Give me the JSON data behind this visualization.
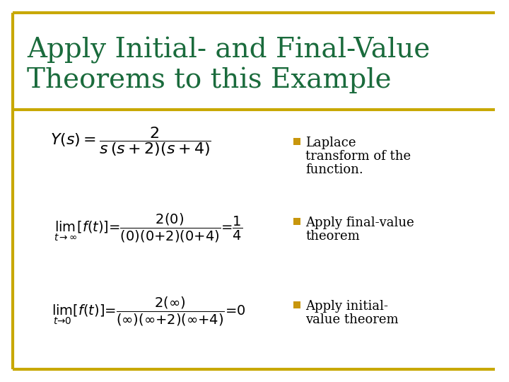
{
  "title_line1": "Apply Initial- and Final-Value",
  "title_line2": "Theorems to this Example",
  "title_color": "#1a6b3c",
  "background_color": "#ffffff",
  "border_color": "#c8a800",
  "bullet_color": "#c8960c",
  "bullet_text_color": "#000000",
  "bullet1_line1": "Laplace",
  "bullet1_line2": "transform of the",
  "bullet1_line3": "function.",
  "bullet2_line1": "Apply final-value",
  "bullet2_line2": "theorem",
  "bullet3_line1": "Apply initial-",
  "bullet3_line2": "value theorem",
  "eq_color": "#000000",
  "figsize": [
    7.2,
    5.4
  ],
  "dpi": 100
}
